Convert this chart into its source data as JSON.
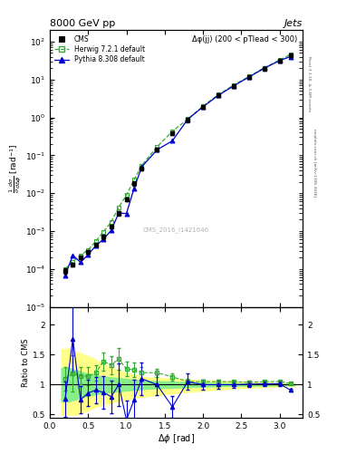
{
  "title": "8000 GeV pp",
  "title_right": "Jets",
  "annotation": "Δφ(jj) (200 < pTlead < 300)",
  "watermark": "CMS_2016_I1421646",
  "rivet_label": "Rivet 3.1.10, ≥ 3.6M events",
  "mcplots_label": "mcplots.cern.ch [arXiv:1306.3436]",
  "ylabel_main": "$\\frac{1}{\\sigma}\\frac{d\\sigma}{d\\Delta\\phi}$ [rad$^{-1}$]",
  "ylabel_ratio": "Ratio to CMS",
  "xlabel": "$\\Delta\\phi$ [rad]",
  "xlim": [
    0.0,
    3.3
  ],
  "ylim_main": [
    1e-05,
    200
  ],
  "ylim_ratio": [
    0.45,
    2.3
  ],
  "cms_x": [
    0.2,
    0.3,
    0.4,
    0.5,
    0.6,
    0.7,
    0.8,
    0.9,
    1.0,
    1.1,
    1.2,
    1.4,
    1.6,
    1.8,
    2.0,
    2.2,
    2.4,
    2.6,
    2.8,
    3.0,
    3.14
  ],
  "cms_y": [
    9e-05,
    0.00013,
    0.0002,
    0.00028,
    0.00045,
    0.0007,
    0.0013,
    0.003,
    0.007,
    0.018,
    0.045,
    0.14,
    0.38,
    0.85,
    1.9,
    3.8,
    6.8,
    11.5,
    19.5,
    31.0,
    44.0
  ],
  "cms_yerr_lo": [
    1.5e-05,
    1.5e-05,
    2e-05,
    3e-05,
    5e-05,
    8e-05,
    0.00015,
    0.0004,
    0.0008,
    0.002,
    0.005,
    0.015,
    0.04,
    0.09,
    0.2,
    0.4,
    0.7,
    1.2,
    2.0,
    3.2,
    4.5
  ],
  "cms_yerr_hi": [
    1.5e-05,
    1.5e-05,
    2e-05,
    3e-05,
    5e-05,
    8e-05,
    0.00015,
    0.0004,
    0.0008,
    0.002,
    0.005,
    0.015,
    0.04,
    0.09,
    0.2,
    0.4,
    0.7,
    1.2,
    2.0,
    3.2,
    4.5
  ],
  "herwig_x": [
    0.2,
    0.3,
    0.4,
    0.5,
    0.6,
    0.7,
    0.8,
    0.9,
    1.0,
    1.1,
    1.2,
    1.4,
    1.6,
    1.8,
    2.0,
    2.2,
    2.4,
    2.6,
    2.8,
    3.0,
    3.14
  ],
  "herwig_y": [
    0.0001,
    0.000155,
    0.00023,
    0.00032,
    0.00054,
    0.00097,
    0.00173,
    0.0043,
    0.0088,
    0.0225,
    0.054,
    0.168,
    0.428,
    0.898,
    1.995,
    3.99,
    7.13,
    12.0,
    20.5,
    32.6,
    45.0
  ],
  "pythia_x": [
    0.2,
    0.3,
    0.4,
    0.5,
    0.6,
    0.7,
    0.8,
    0.9,
    1.0,
    1.1,
    1.2,
    1.4,
    1.6,
    1.8,
    2.0,
    2.2,
    2.4,
    2.6,
    2.8,
    3.0,
    3.14
  ],
  "pythia_y": [
    6.8e-05,
    0.00023,
    0.00015,
    0.00024,
    0.00041,
    0.00061,
    0.00104,
    0.003,
    0.0029,
    0.0135,
    0.0495,
    0.14,
    0.24,
    0.89,
    1.9,
    3.8,
    6.8,
    11.6,
    19.8,
    31.5,
    40.0
  ],
  "ratio_herwig_x": [
    0.2,
    0.3,
    0.4,
    0.5,
    0.6,
    0.7,
    0.8,
    0.9,
    1.0,
    1.1,
    1.2,
    1.4,
    1.6,
    1.8,
    2.0,
    2.2,
    2.4,
    2.6,
    2.8,
    3.0,
    3.14
  ],
  "ratio_herwig_y": [
    1.1,
    1.19,
    1.15,
    1.14,
    1.2,
    1.39,
    1.33,
    1.43,
    1.26,
    1.25,
    1.2,
    1.2,
    1.13,
    1.055,
    1.05,
    1.05,
    1.05,
    1.04,
    1.05,
    1.052,
    1.022
  ],
  "ratio_herwig_err": [
    0.2,
    0.3,
    0.15,
    0.15,
    0.13,
    0.15,
    0.15,
    0.18,
    0.12,
    0.12,
    0.1,
    0.07,
    0.06,
    0.04,
    0.035,
    0.03,
    0.025,
    0.025,
    0.025,
    0.02,
    0.018
  ],
  "ratio_pythia_x": [
    0.2,
    0.3,
    0.4,
    0.5,
    0.6,
    0.7,
    0.8,
    0.9,
    1.0,
    1.1,
    1.2,
    1.4,
    1.6,
    1.8,
    2.0,
    2.2,
    2.4,
    2.6,
    2.8,
    3.0,
    3.14
  ],
  "ratio_pythia_y": [
    0.76,
    1.77,
    0.75,
    0.86,
    0.91,
    0.87,
    0.8,
    1.0,
    0.41,
    0.75,
    1.1,
    1.0,
    0.63,
    1.05,
    1.0,
    1.0,
    1.0,
    1.008,
    1.015,
    1.016,
    0.91
  ],
  "ratio_pythia_err": [
    0.3,
    0.55,
    0.22,
    0.22,
    0.22,
    0.27,
    0.27,
    0.35,
    0.33,
    0.33,
    0.27,
    0.18,
    0.18,
    0.14,
    0.09,
    0.07,
    0.06,
    0.045,
    0.038,
    0.033,
    0.028
  ],
  "band_x": [
    0.15,
    0.25,
    0.35,
    0.45,
    0.55,
    0.65,
    0.75,
    0.85,
    0.95,
    1.05,
    1.15,
    1.3,
    1.5,
    1.7,
    1.9,
    2.1,
    2.3,
    2.5,
    2.7,
    2.9,
    3.07,
    3.2
  ],
  "band_yellow_lo": [
    0.5,
    0.5,
    0.5,
    0.55,
    0.6,
    0.65,
    0.68,
    0.72,
    0.74,
    0.77,
    0.79,
    0.81,
    0.84,
    0.87,
    0.89,
    0.91,
    0.93,
    0.945,
    0.955,
    0.965,
    0.975,
    0.98
  ],
  "band_yellow_hi": [
    1.6,
    1.6,
    1.55,
    1.5,
    1.45,
    1.38,
    1.32,
    1.26,
    1.22,
    1.18,
    1.15,
    1.12,
    1.11,
    1.09,
    1.08,
    1.07,
    1.06,
    1.05,
    1.04,
    1.03,
    1.022,
    1.015
  ],
  "band_green_lo": [
    0.72,
    0.72,
    0.76,
    0.8,
    0.83,
    0.855,
    0.87,
    0.885,
    0.895,
    0.91,
    0.92,
    0.935,
    0.945,
    0.955,
    0.965,
    0.972,
    0.978,
    0.981,
    0.984,
    0.987,
    0.989,
    0.991
  ],
  "band_green_hi": [
    1.28,
    1.28,
    1.24,
    1.2,
    1.17,
    1.145,
    1.13,
    1.115,
    1.105,
    1.09,
    1.08,
    1.065,
    1.055,
    1.045,
    1.035,
    1.028,
    1.022,
    1.019,
    1.016,
    1.013,
    1.011,
    1.009
  ],
  "cms_color": "black",
  "herwig_color": "#33aa33",
  "pythia_color": "#0000cc",
  "yellow_color": "#ffff88",
  "green_color": "#88ee88"
}
